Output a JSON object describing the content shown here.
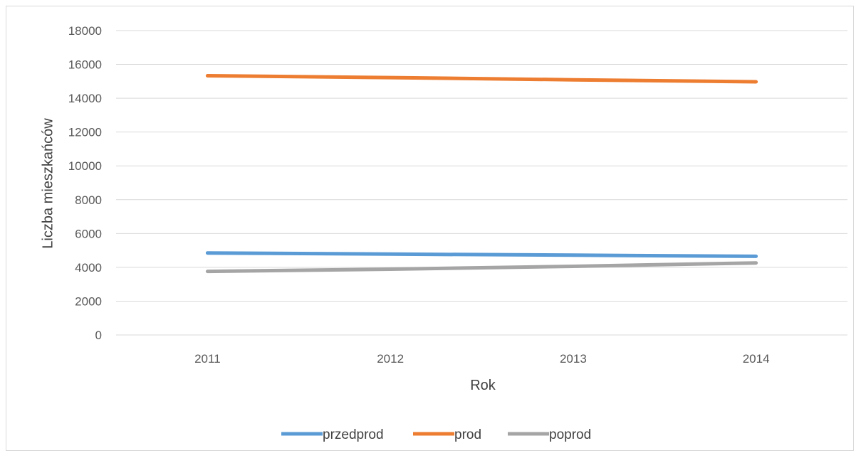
{
  "chart_data": {
    "type": "line",
    "title": "",
    "xlabel": "Rok",
    "ylabel": "Liczba mieszkańców",
    "categories": [
      "2011",
      "2012",
      "2013",
      "2014"
    ],
    "ylim": [
      0,
      18000
    ],
    "ytick_step": 2000,
    "grid": true,
    "legend_position": "bottom",
    "series": [
      {
        "name": "przedprod",
        "color": "#5b9bd5",
        "values": [
          4850,
          4780,
          4720,
          4650
        ]
      },
      {
        "name": "prod",
        "color": "#ed7d31",
        "values": [
          15330,
          15220,
          15090,
          14970
        ]
      },
      {
        "name": "poprod",
        "color": "#a5a5a5",
        "values": [
          3760,
          3890,
          4060,
          4260
        ]
      }
    ]
  }
}
